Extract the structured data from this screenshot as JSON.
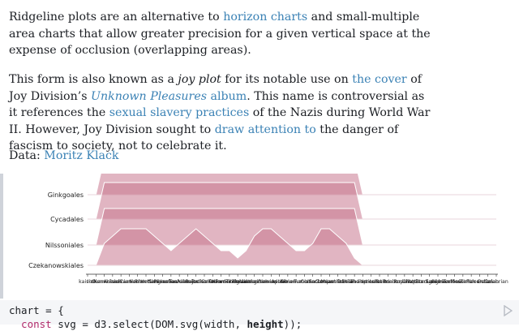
{
  "prose": {
    "p1": {
      "t1": "Ridgeline plots are an alternative to ",
      "link1": "horizon charts",
      "t2": " and small-multiple area charts that allow greater precision for a given vertical space at the expense of occlusion (overlapping areas)."
    },
    "p2": {
      "t1": "This form is also known as a ",
      "em1": "joy plot",
      "t2": " for its notable use on ",
      "link1": "the cover",
      "t3": " of Joy Division’s ",
      "link2": "Unknown Pleasures",
      "link2b": " album",
      "t4": ". This name is controversial as it references the ",
      "link3": "sexual slavery practices",
      "t5": " of the Nazis during World War II. However, Joy Division sought to ",
      "link4": "draw attention to",
      "t6": " the danger of fascism to society, not to celebrate it."
    },
    "p3": {
      "t1": "Data: ",
      "link1": "Moritz Klack"
    }
  },
  "chart_data": {
    "type": "area",
    "series": [
      {
        "name": "Ginkgoales",
        "values": [
          0,
          0,
          5,
          5,
          5,
          5,
          5,
          5,
          5,
          5,
          5,
          5,
          5,
          5,
          5,
          5,
          5,
          5,
          5,
          5,
          5,
          5,
          5,
          5,
          5,
          5,
          5,
          5,
          5,
          5,
          5,
          5,
          5,
          0,
          0,
          0,
          0,
          0,
          0,
          0,
          0,
          0,
          0,
          0,
          0,
          0,
          0,
          0,
          0,
          0
        ]
      },
      {
        "name": "Cycadales",
        "values": [
          0,
          0,
          5,
          5,
          5,
          5,
          5,
          5,
          5,
          5,
          5,
          5,
          5,
          5,
          5,
          5,
          5,
          5,
          5,
          5,
          5,
          5,
          5,
          5,
          5,
          5,
          5,
          5,
          5,
          5,
          5,
          5,
          5,
          0,
          0,
          0,
          0,
          0,
          0,
          0,
          0,
          0,
          0,
          0,
          0,
          0,
          0,
          0,
          0,
          0
        ]
      },
      {
        "name": "Nilssoniales",
        "values": [
          0,
          0,
          5,
          5,
          5,
          5,
          5,
          5,
          5,
          5,
          5,
          5,
          5,
          5,
          5,
          5,
          5,
          5,
          5,
          5,
          5,
          5,
          5,
          5,
          5,
          5,
          5,
          5,
          5,
          5,
          5,
          5,
          5,
          0,
          0,
          0,
          0,
          0,
          0,
          0,
          0,
          0,
          0,
          0,
          0,
          0,
          0,
          0,
          0,
          0
        ]
      },
      {
        "name": "Czekanowskiales",
        "values": [
          0,
          0,
          3,
          4,
          5,
          5,
          5,
          5,
          4,
          3,
          2,
          3,
          4,
          5,
          4,
          3,
          2,
          2,
          1,
          2,
          4,
          5,
          5,
          4,
          3,
          2,
          2,
          3,
          5,
          5,
          4,
          3,
          1,
          0,
          0,
          0,
          0,
          0,
          0,
          0,
          0,
          0,
          0,
          0,
          0,
          0,
          0,
          0,
          0,
          0
        ]
      }
    ],
    "x_tick_labels": [
      "kaisian",
      "Induan",
      "Olenekian",
      "Anisian",
      "Ladinian",
      "Carnian",
      "Norian",
      "Rhaetian",
      "Hettangian",
      "Sinemurian",
      "Pliensbachian",
      "Toarcian",
      "Aalenian",
      "Bajocian",
      "Bathonian",
      "Callovian",
      "Oxfordian",
      "Kimmeridgian",
      "Tithonian",
      "Berriasian",
      "Valanginian",
      "Hauterivian",
      "Barremian",
      "Aptian",
      "Albian",
      "Cenomanian",
      "Turonian",
      "Coniacian",
      "Santonian",
      "Campanian",
      "Maastrichtian",
      "Danian",
      "Selandian",
      "Thanetian",
      "Ypresian",
      "Lutetian",
      "Bartonian",
      "Priabonian",
      "Rupelian",
      "Chattian",
      "Aquitanian",
      "Burdigalian",
      "Langhian",
      "Serravallian",
      "Tortonian",
      "Messinian",
      "Zanclean",
      "Piacenzian",
      "Gelasian",
      "Calabrian"
    ],
    "fill": "#c9788f",
    "stroke": "#ffffff"
  },
  "code": {
    "line1_name": "chart",
    "line1_op": " = {",
    "line2_kw": "  const",
    "line2_rest": " svg = d3.select(DOM.svg(width, ",
    "line2_bold": "height",
    "line2_end": "));"
  },
  "icons": {
    "run": "run-icon",
    "cell": "cell-indicator"
  }
}
